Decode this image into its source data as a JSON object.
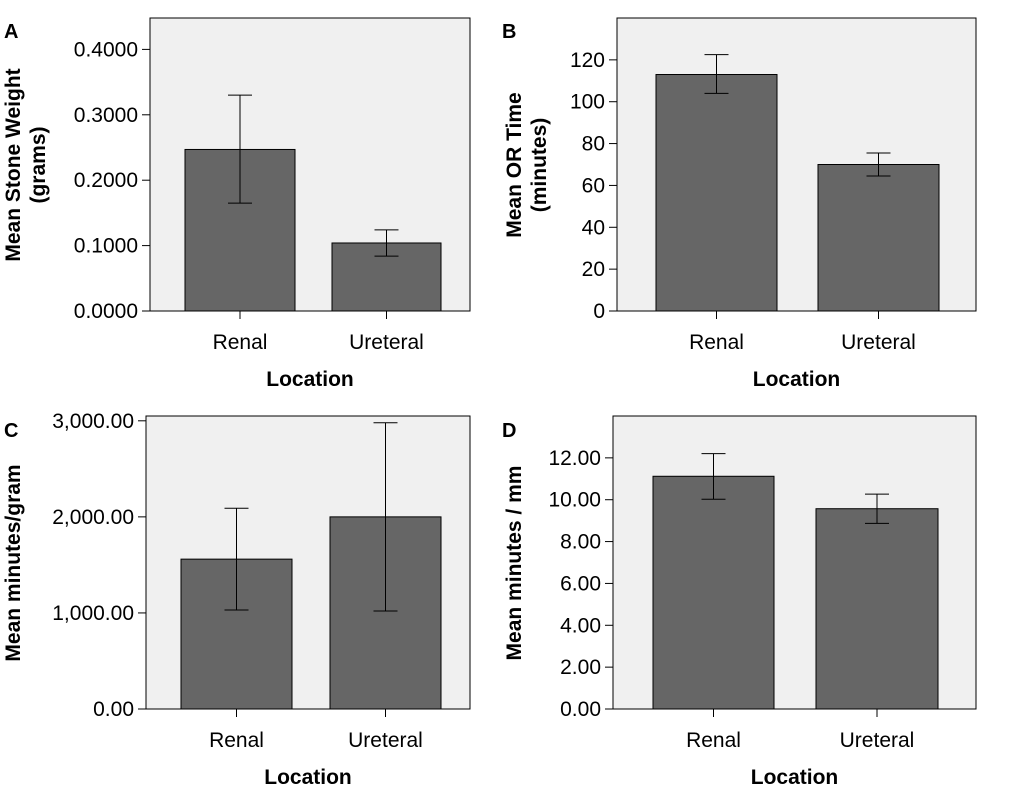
{
  "chart_data": [
    {
      "panel": "A",
      "type": "bar",
      "categories": [
        "Renal",
        "Ureteral"
      ],
      "values": [
        0.247,
        0.104
      ],
      "error_low": [
        0.165,
        0.084
      ],
      "error_high": [
        0.33,
        0.124
      ],
      "xlabel": "Location",
      "ylabel": [
        "Mean Stone Weight",
        "(grams)"
      ],
      "ylim": [
        0,
        0.448
      ],
      "yticks": [
        0,
        0.1,
        0.2,
        0.3,
        0.4
      ],
      "yticklabels": [
        "0.0000",
        "0.1000",
        "0.2000",
        "0.3000",
        "0.4000"
      ],
      "grid": false,
      "bar_color": "#666666",
      "plot_background": "#f0f0f0"
    },
    {
      "panel": "B",
      "type": "bar",
      "categories": [
        "Renal",
        "Ureteral"
      ],
      "values": [
        113,
        70
      ],
      "error_low": [
        104,
        64.5
      ],
      "error_high": [
        122.5,
        75.5
      ],
      "xlabel": "Location",
      "ylabel": [
        "Mean OR Time",
        "(minutes)"
      ],
      "ylim": [
        0,
        140
      ],
      "yticks": [
        0,
        20,
        40,
        60,
        80,
        100,
        120
      ],
      "yticklabels": [
        "0",
        "20",
        "40",
        "60",
        "80",
        "100",
        "120"
      ],
      "grid": false,
      "bar_color": "#666666",
      "plot_background": "#f0f0f0"
    },
    {
      "panel": "C",
      "type": "bar",
      "categories": [
        "Renal",
        "Ureteral"
      ],
      "values": [
        1560,
        2000
      ],
      "error_low": [
        1030,
        1020
      ],
      "error_high": [
        2090,
        2980
      ],
      "xlabel": "Location",
      "ylabel": [
        "Mean minutes/gram"
      ],
      "ylim": [
        0,
        3050
      ],
      "yticks": [
        0,
        1000,
        2000,
        3000
      ],
      "yticklabels": [
        "0.00",
        "1,000.00",
        "2,000.00",
        "3,000.00"
      ],
      "grid": false,
      "bar_color": "#666666",
      "plot_background": "#f0f0f0"
    },
    {
      "panel": "D",
      "type": "bar",
      "categories": [
        "Renal",
        "Ureteral"
      ],
      "values": [
        11.12,
        9.57
      ],
      "error_low": [
        10.02,
        8.87
      ],
      "error_high": [
        12.2,
        10.27
      ],
      "xlabel": "Location",
      "ylabel": [
        "Mean minutes / mm"
      ],
      "ylim": [
        0,
        14
      ],
      "yticks": [
        0,
        2,
        4,
        6,
        8,
        10,
        12
      ],
      "yticklabels": [
        "0.00",
        "2.00",
        "4.00",
        "6.00",
        "8.00",
        "10.00",
        "12.00"
      ],
      "grid": false,
      "bar_color": "#666666",
      "plot_background": "#f0f0f0"
    }
  ]
}
